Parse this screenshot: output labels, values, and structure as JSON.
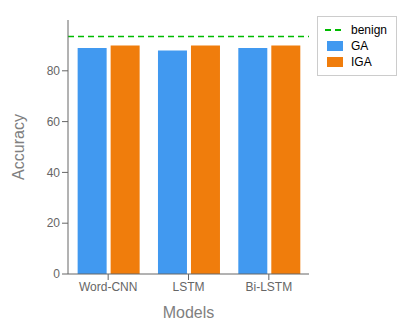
{
  "chart_data": {
    "type": "bar",
    "categories": [
      "Word-CNN",
      "LSTM",
      "Bi-LSTM"
    ],
    "series": [
      {
        "name": "GA",
        "color": "#4199f0",
        "values": [
          89.0,
          88.0,
          89.0
        ]
      },
      {
        "name": "IGA",
        "color": "#f07d0c",
        "values": [
          90.0,
          90.0,
          90.0
        ]
      }
    ],
    "reference_lines": [
      {
        "name": "benign",
        "value": 93.5,
        "color": "#00bb00",
        "line_style": "dashed"
      }
    ],
    "xlabel": "Models",
    "ylabel": "Accuracy",
    "ylim": [
      0,
      100
    ],
    "yticks": [
      0,
      20,
      40,
      60,
      80
    ],
    "grid": false,
    "legend": "right"
  }
}
